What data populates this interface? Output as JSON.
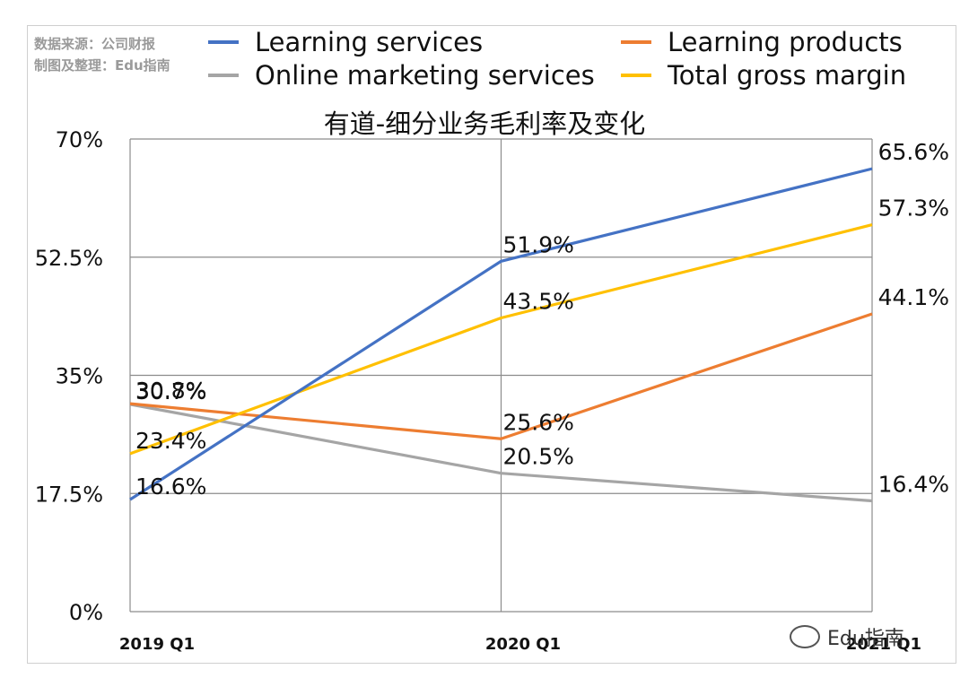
{
  "source": {
    "line1": "数据来源：公司财报",
    "line2": "制图及整理：Edu指南"
  },
  "watermark": {
    "text": "Edu指南"
  },
  "colors": {
    "learning_services": "#4472C4",
    "learning_products": "#ED7D31",
    "online_marketing": "#A5A5A5",
    "total_gross_margin": "#FFC000"
  },
  "chart_data": {
    "type": "line",
    "title": "有道-细分业务毛利率及变化",
    "x": [
      "2019 Q1",
      "2020 Q1",
      "2021 Q1"
    ],
    "ylim": [
      0,
      70
    ],
    "yticks": [
      "0%",
      "17.5%",
      "35%",
      "52.5%",
      "70%"
    ],
    "ytick_values": [
      0,
      17.5,
      35,
      52.5,
      70
    ],
    "grid": true,
    "legend": "top",
    "series": [
      {
        "name": "Learning services",
        "color": "#4472C4",
        "values": [
          16.6,
          51.9,
          65.6
        ],
        "labels": [
          "16.6%",
          "51.9%",
          "65.6%"
        ]
      },
      {
        "name": "Learning products",
        "color": "#ED7D31",
        "values": [
          30.8,
          25.6,
          44.1
        ],
        "labels": [
          "30.8%",
          "25.6%",
          "44.1%"
        ]
      },
      {
        "name": "Online marketing services",
        "color": "#A5A5A5",
        "values": [
          30.7,
          20.5,
          16.4
        ],
        "labels": [
          "30.7%",
          "20.5%",
          "16.4%"
        ]
      },
      {
        "name": "Total gross margin",
        "color": "#FFC000",
        "values": [
          23.4,
          43.5,
          57.3
        ],
        "labels": [
          "23.4%",
          "43.5%",
          "57.3%"
        ]
      }
    ]
  }
}
